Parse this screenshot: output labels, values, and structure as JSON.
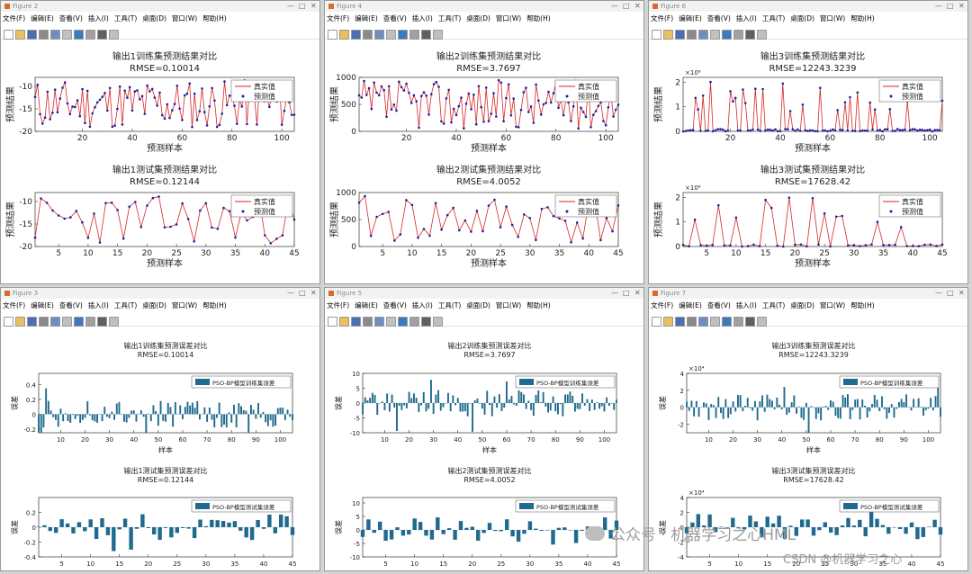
{
  "menu": [
    "文件(F)",
    "编辑(E)",
    "查看(V)",
    "插入(I)",
    "工具(T)",
    "桌面(D)",
    "窗口(W)",
    "帮助(H)"
  ],
  "windows": [
    {
      "title": "Figure 2",
      "kind": "pred",
      "top": {
        "title1": "输出1训练集预测结果对比",
        "title2": "RMSE=0.10014",
        "xlabel": "预测样本",
        "ylabel": "预测结果",
        "xmax": 105,
        "ylim": [
          -20,
          -8
        ],
        "yticks": [
          -20,
          -15,
          -10
        ],
        "xticks": [
          20,
          40,
          60,
          80,
          100
        ],
        "seed": 11,
        "spiky": false
      },
      "bottom": {
        "title1": "输出1测试集预测结果对比",
        "title2": "RMSE=0.12144",
        "xlabel": "预测样本",
        "ylabel": "预测结果",
        "xmax": 45,
        "ylim": [
          -20,
          -8
        ],
        "yticks": [
          -20,
          -15,
          -10
        ],
        "xticks": [
          5,
          10,
          15,
          20,
          25,
          30,
          35,
          40,
          45
        ],
        "seed": 23,
        "spiky": false
      },
      "legend": [
        "真实值",
        "预测值"
      ]
    },
    {
      "title": "Figure 4",
      "kind": "pred",
      "top": {
        "title1": "输出2训练集预测结果对比",
        "title2": "RMSE=3.7697",
        "xlabel": "预测样本",
        "ylabel": "预测结果",
        "xmax": 105,
        "ylim": [
          0,
          1000
        ],
        "yticks": [
          0,
          500,
          1000
        ],
        "xticks": [
          20,
          40,
          60,
          80,
          100
        ],
        "seed": 37,
        "spiky": false
      },
      "bottom": {
        "title1": "输出2测试集预测结果对比",
        "title2": "RMSE=4.0052",
        "xlabel": "预测样本",
        "ylabel": "预测结果",
        "xmax": 45,
        "ylim": [
          0,
          1000
        ],
        "yticks": [
          0,
          500,
          1000
        ],
        "xticks": [
          5,
          10,
          15,
          20,
          25,
          30,
          35,
          40,
          45
        ],
        "seed": 41,
        "spiky": false
      },
      "legend": [
        "真实值",
        "预测值"
      ]
    },
    {
      "title": "Figure 6",
      "kind": "pred",
      "top": {
        "title1": "输出3训练集预测结果对比",
        "title2": "RMSE=12243.3239",
        "xlabel": "预测样本",
        "ylabel": "预测结果",
        "xmax": 105,
        "ylim": [
          0,
          2.2
        ],
        "yticks": [
          0,
          1,
          2
        ],
        "xticks": [
          20,
          40,
          60,
          80,
          100
        ],
        "exp": "×10⁶",
        "seed": 53,
        "spiky": true
      },
      "bottom": {
        "title1": "输出3测试集预测结果对比",
        "title2": "RMSE=17628.42",
        "xlabel": "预测样本",
        "ylabel": "预测结果",
        "xmax": 45,
        "ylim": [
          0,
          2.2
        ],
        "yticks": [
          0,
          1,
          2
        ],
        "xticks": [
          5,
          10,
          15,
          20,
          25,
          30,
          35,
          40,
          45
        ],
        "exp": "×10⁶",
        "seed": 67,
        "spiky": true
      },
      "legend": [
        "真实值",
        "预测值"
      ]
    },
    {
      "title": "Figure 3",
      "kind": "err",
      "top": {
        "title1": "输出1训练集预测误差对比",
        "title2": "RMSE=0.10014",
        "xlabel": "样本",
        "ylabel": "误差",
        "xmax": 105,
        "ylim": [
          -0.25,
          0.55
        ],
        "yticks": [
          -0.2,
          0,
          0.2,
          0.4
        ],
        "xticks": [
          10,
          20,
          30,
          40,
          50,
          60,
          70,
          80,
          90,
          100
        ],
        "legend": "PSO-BP模型训练集误差",
        "seed": 71
      },
      "bottom": {
        "title1": "输出1测试集预测误差对比",
        "title2": "RMSE=0.12144",
        "xlabel": "样本",
        "ylabel": "误差",
        "xmax": 45,
        "ylim": [
          -0.4,
          0.4
        ],
        "yticks": [
          -0.4,
          -0.2,
          0,
          0.2
        ],
        "xticks": [
          5,
          10,
          15,
          20,
          25,
          30,
          35,
          40,
          45
        ],
        "legend": "PSO-BP模型测试集误差",
        "seed": 83
      }
    },
    {
      "title": "Figure 5",
      "kind": "err",
      "top": {
        "title1": "输出2训练集预测误差对比",
        "title2": "RMSE=3.7697",
        "xlabel": "样本",
        "ylabel": "误差",
        "xmax": 105,
        "ylim": [
          -10,
          10
        ],
        "yticks": [
          -10,
          -5,
          0,
          5,
          10
        ],
        "xticks": [
          10,
          20,
          30,
          40,
          50,
          60,
          70,
          80,
          90,
          100
        ],
        "legend": "PSO-BP模型训练集误差",
        "seed": 97
      },
      "bottom": {
        "title1": "输出2测试集预测误差对比",
        "title2": "RMSE=4.0052",
        "xlabel": "样本",
        "ylabel": "误差",
        "xmax": 45,
        "ylim": [
          -10,
          12
        ],
        "yticks": [
          -10,
          -5,
          0,
          5,
          10
        ],
        "xticks": [
          5,
          10,
          15,
          20,
          25,
          30,
          35,
          40,
          45
        ],
        "legend": "PSO-BP模型测试集误差",
        "seed": 101
      }
    },
    {
      "title": "Figure 7",
      "kind": "err",
      "top": {
        "title1": "输出3训练集预测误差对比",
        "title2": "RMSE=12243.3239",
        "xlabel": "样本",
        "ylabel": "误差",
        "xmax": 105,
        "ylim": [
          -3,
          4
        ],
        "yticks": [
          -2,
          0,
          2,
          4
        ],
        "xticks": [
          10,
          20,
          30,
          40,
          50,
          60,
          70,
          80,
          90,
          100
        ],
        "exp": "×10⁴",
        "legend": "PSO-BP模型训练集误差",
        "seed": 113
      },
      "bottom": {
        "title1": "输出3测试集预测误差对比",
        "title2": "RMSE=17628.42",
        "xlabel": "样本",
        "ylabel": "误差",
        "xmax": 45,
        "ylim": [
          -4,
          4
        ],
        "yticks": [
          -4,
          -2,
          0,
          2,
          4
        ],
        "xticks": [
          5,
          10,
          15,
          20,
          25,
          30,
          35,
          40,
          45
        ],
        "exp": "×10⁴",
        "legend": "PSO-BP模型测试集误差",
        "seed": 127
      }
    }
  ],
  "watermark": {
    "line1": "公众号 · 机器学习之心HML",
    "line2": "CSDN @机器学习之心"
  },
  "colors": {
    "true_line": "#d62728",
    "pred_marker": "#1f1fa0",
    "bar": "#1f6a8e"
  },
  "chart_data": [
    {
      "type": "line",
      "title": "输出1训练集预测结果对比",
      "series": [
        {
          "name": "真实值"
        },
        {
          "name": "预测值"
        }
      ]
    },
    {
      "type": "line",
      "title": "输出1测试集预测结果对比",
      "series": [
        {
          "name": "真实值"
        },
        {
          "name": "预测值"
        }
      ]
    },
    {
      "type": "line",
      "title": "输出2训练集预测结果对比",
      "series": [
        {
          "name": "真实值"
        },
        {
          "name": "预测值"
        }
      ]
    },
    {
      "type": "line",
      "title": "输出2测试集预测结果对比",
      "series": [
        {
          "name": "真实值"
        },
        {
          "name": "预测值"
        }
      ]
    },
    {
      "type": "line",
      "title": "输出3训练集预测结果对比",
      "series": [
        {
          "name": "真实值"
        },
        {
          "name": "预测值"
        }
      ]
    },
    {
      "type": "line",
      "title": "输出3测试集预测结果对比",
      "series": [
        {
          "name": "真实值"
        },
        {
          "name": "预测值"
        }
      ]
    },
    {
      "type": "bar",
      "title": "输出1训练集预测误差对比",
      "series": [
        {
          "name": "PSO-BP模型训练集误差"
        }
      ]
    },
    {
      "type": "bar",
      "title": "输出1测试集预测误差对比",
      "series": [
        {
          "name": "PSO-BP模型测试集误差"
        }
      ]
    },
    {
      "type": "bar",
      "title": "输出2训练集预测误差对比",
      "series": [
        {
          "name": "PSO-BP模型训练集误差"
        }
      ]
    },
    {
      "type": "bar",
      "title": "输出2测试集预测误差对比",
      "series": [
        {
          "name": "PSO-BP模型测试集误差"
        }
      ]
    },
    {
      "type": "bar",
      "title": "输出3训练集预测误差对比",
      "series": [
        {
          "name": "PSO-BP模型训练集误差"
        }
      ]
    },
    {
      "type": "bar",
      "title": "输出3测试集预测误差对比",
      "series": [
        {
          "name": "PSO-BP模型测试集误差"
        }
      ]
    }
  ]
}
